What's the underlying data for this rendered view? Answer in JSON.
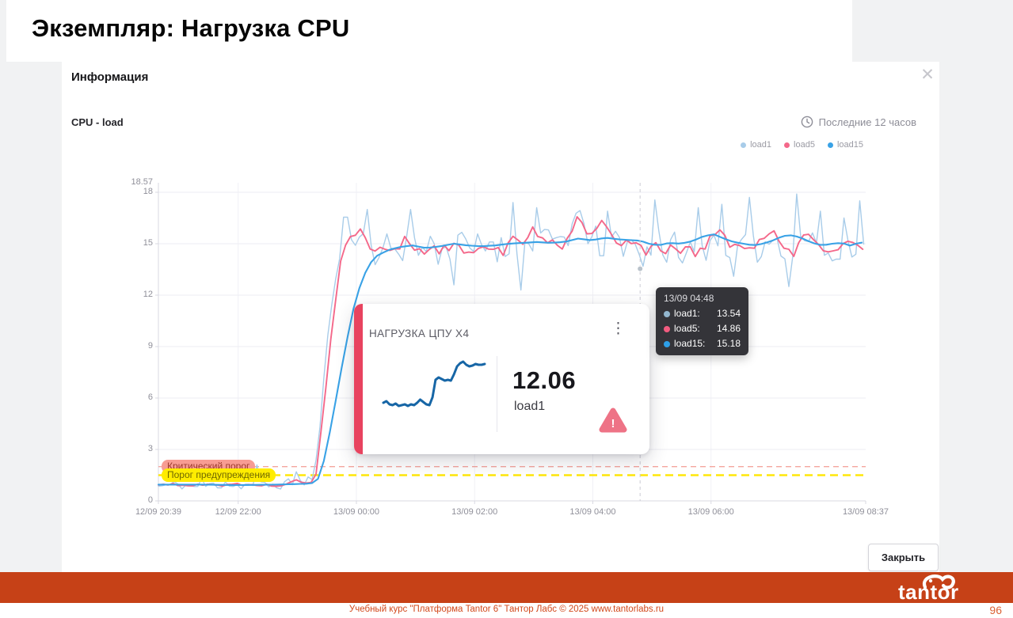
{
  "slide": {
    "title": "Экземпляр: Нагрузка CPU",
    "page_number": "96",
    "footer": "Учебный курс \"Платформа Tantor 6\"  Тантор Лабс © 2025  www.tantorlabs.ru"
  },
  "brand": {
    "logo_text": "tantor",
    "bar_color": "#c64117"
  },
  "modal": {
    "title": "Информация",
    "close_label": "Закрыть"
  },
  "chart": {
    "title": "CPU - load",
    "time_range": "Последние 12 часов"
  },
  "icons": {
    "close": "✕",
    "kebab": "⋮",
    "warning": "!"
  },
  "tooltip": {
    "time": "13/09 04:48",
    "rows": [
      {
        "label": "load1:",
        "value": "13.54",
        "color": "#93b7cf"
      },
      {
        "label": "load5:",
        "value": "14.86",
        "color": "#f25c80"
      },
      {
        "label": "load15:",
        "value": "15.18",
        "color": "#2d9fe8"
      }
    ]
  },
  "card": {
    "title": "НАГРУЗКА ЦПУ Х4",
    "value": "12.06",
    "metric": "load1",
    "accent_color": "#e8435f",
    "warning_color": "#ee7386",
    "spark_color": "#1766a6",
    "spark_values_y": [
      59,
      57,
      61,
      62,
      60,
      63,
      62,
      61,
      63,
      61,
      62,
      59,
      55,
      58,
      61,
      62,
      52,
      30,
      27,
      29,
      31,
      30,
      31,
      23,
      13,
      9,
      7,
      11,
      13,
      12,
      10,
      11,
      11,
      10
    ]
  },
  "chart_data": {
    "type": "line",
    "title": "CPU - load",
    "grid": true,
    "legend_position": "top-right",
    "x_axis": {
      "range_minutes": [
        0,
        718
      ],
      "start": "12/09 20:39",
      "end": "13/09 08:37",
      "ticks": [
        {
          "t": 0,
          "label": "12/09 20:39"
        },
        {
          "t": 81,
          "label": "12/09 22:00"
        },
        {
          "t": 201,
          "label": "13/09 00:00"
        },
        {
          "t": 321,
          "label": "13/09 02:00"
        },
        {
          "t": 441,
          "label": "13/09 04:00"
        },
        {
          "t": 561,
          "label": "13/09 06:00"
        },
        {
          "t": 718,
          "label": "13/09 08:37"
        }
      ]
    },
    "y_axis": {
      "ticks": [
        0,
        3,
        6,
        9,
        12,
        15,
        18
      ],
      "max_label": "18.57",
      "range": [
        0,
        18.57
      ]
    },
    "rise_t": 158,
    "thresholds": [
      {
        "key": "critical",
        "name": "Критический порог",
        "value": 2.0,
        "line_color": "#f5a59e",
        "label_bg": "#f79c93",
        "label_text_color": "#9c392b",
        "dash": "7 5",
        "width": 1.3
      },
      {
        "key": "warning",
        "name": "Порог предупреждения",
        "value": 1.5,
        "line_color": "#ffe70a",
        "label_bg": "#ffec00",
        "label_text_color": "#6f6800",
        "dash": "10 6",
        "width": 2.6
      }
    ],
    "crosshair": {
      "t": 489,
      "time_label": "13/09 04:48"
    },
    "hover_values": {
      "load1": 13.54,
      "load5": 14.86,
      "load15": 15.18
    },
    "series": [
      {
        "name": "load1",
        "color": "#a8cce9",
        "width": 1.4,
        "seed": 11,
        "step": 4,
        "noise_amp_before": 0.28,
        "noise_amp_after": 0.85,
        "keypoints": [
          [
            0,
            0.85
          ],
          [
            20,
            0.95
          ],
          [
            40,
            0.85
          ],
          [
            60,
            0.95
          ],
          [
            80,
            0.9
          ],
          [
            100,
            0.95
          ],
          [
            120,
            0.9
          ],
          [
            140,
            1.1
          ],
          [
            150,
            1.0
          ],
          [
            156,
            1.2
          ],
          [
            160,
            2.2
          ],
          [
            164,
            4.5
          ],
          [
            168,
            7.0
          ],
          [
            172,
            9.5
          ],
          [
            177,
            12.0
          ],
          [
            182,
            14.0
          ],
          [
            188,
            15.0
          ],
          [
            195,
            15.2
          ],
          [
            205,
            15.4
          ],
          [
            215,
            14.7
          ],
          [
            225,
            14.4
          ],
          [
            235,
            14.9
          ],
          [
            245,
            14.6
          ],
          [
            255,
            15.2
          ],
          [
            265,
            14.6
          ],
          [
            275,
            14.9
          ],
          [
            285,
            14.4
          ],
          [
            295,
            14.7
          ],
          [
            305,
            15.1
          ],
          [
            315,
            14.5
          ],
          [
            325,
            14.9
          ],
          [
            335,
            14.6
          ],
          [
            345,
            14.8
          ],
          [
            355,
            14.5
          ],
          [
            365,
            15.2
          ],
          [
            375,
            14.9
          ],
          [
            385,
            15.6
          ],
          [
            395,
            15.0
          ],
          [
            405,
            15.2
          ],
          [
            415,
            15.5
          ],
          [
            425,
            16.3
          ],
          [
            435,
            15.6
          ],
          [
            445,
            15.8
          ],
          [
            455,
            16.0
          ],
          [
            465,
            15.2
          ],
          [
            475,
            14.9
          ],
          [
            485,
            15.0
          ],
          [
            489,
            13.9
          ],
          [
            495,
            14.4
          ],
          [
            505,
            14.9
          ],
          [
            515,
            14.4
          ],
          [
            525,
            15.0
          ],
          [
            535,
            14.6
          ],
          [
            545,
            14.4
          ],
          [
            555,
            14.8
          ],
          [
            565,
            15.6
          ],
          [
            575,
            15.1
          ],
          [
            585,
            14.7
          ],
          [
            595,
            15.0
          ],
          [
            605,
            14.6
          ],
          [
            615,
            14.9
          ],
          [
            625,
            15.4
          ],
          [
            635,
            14.9
          ],
          [
            645,
            14.5
          ],
          [
            655,
            15.3
          ],
          [
            665,
            15.5
          ],
          [
            675,
            14.7
          ],
          [
            685,
            14.4
          ],
          [
            695,
            14.8
          ],
          [
            705,
            15.1
          ],
          [
            712,
            14.9
          ],
          [
            718,
            14.2
          ]
        ],
        "spikes": [
          [
            43,
            2.2
          ],
          [
            67,
            2.0
          ],
          [
            100,
            2.1
          ],
          [
            139,
            2.6
          ],
          [
            153,
            2.3
          ],
          [
            190,
            18.35
          ],
          [
            212,
            17.0
          ],
          [
            257,
            17.9
          ],
          [
            278,
            16.8
          ],
          [
            302,
            17.3
          ],
          [
            338,
            16.9
          ],
          [
            360,
            17.4
          ],
          [
            384,
            17.1
          ],
          [
            398,
            16.9
          ],
          [
            426,
            18.57
          ],
          [
            442,
            17.2
          ],
          [
            457,
            17.8
          ],
          [
            478,
            16.9
          ],
          [
            505,
            18.45
          ],
          [
            522,
            17.0
          ],
          [
            548,
            17.1
          ],
          [
            572,
            17.3
          ],
          [
            600,
            17.7
          ],
          [
            626,
            17.0
          ],
          [
            648,
            17.9
          ],
          [
            672,
            16.9
          ],
          [
            695,
            17.4
          ],
          [
            712,
            17.5
          ]
        ],
        "dips": [
          [
            222,
            12.4
          ],
          [
            300,
            12.6
          ],
          [
            368,
            12.3
          ],
          [
            450,
            12.5
          ],
          [
            530,
            12.4
          ],
          [
            585,
            12.2
          ],
          [
            640,
            12.5
          ],
          [
            690,
            12.3
          ]
        ]
      },
      {
        "name": "load5",
        "color": "#f4688a",
        "width": 1.9,
        "seed": 5,
        "step": 5,
        "noise_amp_before": 0.07,
        "noise_amp_after": 0.26,
        "keypoints": [
          [
            0,
            0.9
          ],
          [
            15,
            1.0
          ],
          [
            30,
            0.85
          ],
          [
            45,
            0.95
          ],
          [
            60,
            0.9
          ],
          [
            75,
            1.0
          ],
          [
            90,
            0.9
          ],
          [
            105,
            0.95
          ],
          [
            120,
            0.88
          ],
          [
            135,
            1.05
          ],
          [
            142,
            1.35
          ],
          [
            148,
            0.95
          ],
          [
            155,
            1.1
          ],
          [
            160,
            1.6
          ],
          [
            164,
            3.2
          ],
          [
            168,
            5.5
          ],
          [
            173,
            8.5
          ],
          [
            179,
            11.5
          ],
          [
            185,
            13.8
          ],
          [
            191,
            15.0
          ],
          [
            198,
            15.4
          ],
          [
            205,
            15.7
          ],
          [
            212,
            15.1
          ],
          [
            220,
            14.5
          ],
          [
            228,
            14.9
          ],
          [
            236,
            14.4
          ],
          [
            244,
            14.9
          ],
          [
            252,
            15.3
          ],
          [
            260,
            14.7
          ],
          [
            268,
            14.4
          ],
          [
            276,
            14.9
          ],
          [
            284,
            14.5
          ],
          [
            292,
            14.7
          ],
          [
            300,
            15.1
          ],
          [
            308,
            14.6
          ],
          [
            316,
            14.4
          ],
          [
            324,
            15.0
          ],
          [
            332,
            14.6
          ],
          [
            340,
            14.8
          ],
          [
            348,
            14.4
          ],
          [
            356,
            15.0
          ],
          [
            364,
            15.4
          ],
          [
            372,
            14.8
          ],
          [
            380,
            15.8
          ],
          [
            386,
            15.3
          ],
          [
            394,
            14.9
          ],
          [
            402,
            15.3
          ],
          [
            410,
            14.8
          ],
          [
            418,
            15.6
          ],
          [
            425,
            16.7
          ],
          [
            430,
            16.1
          ],
          [
            436,
            15.7
          ],
          [
            443,
            15.9
          ],
          [
            450,
            16.2
          ],
          [
            457,
            15.8
          ],
          [
            464,
            15.3
          ],
          [
            472,
            14.9
          ],
          [
            480,
            15.1
          ],
          [
            488,
            14.86
          ],
          [
            496,
            14.5
          ],
          [
            504,
            14.9
          ],
          [
            512,
            14.4
          ],
          [
            520,
            15.0
          ],
          [
            528,
            14.6
          ],
          [
            536,
            14.9
          ],
          [
            544,
            14.3
          ],
          [
            552,
            14.7
          ],
          [
            560,
            15.3
          ],
          [
            568,
            16.0
          ],
          [
            574,
            15.4
          ],
          [
            582,
            14.8
          ],
          [
            590,
            15.1
          ],
          [
            598,
            14.6
          ],
          [
            606,
            14.9
          ],
          [
            614,
            15.4
          ],
          [
            622,
            15.8
          ],
          [
            628,
            15.2
          ],
          [
            636,
            14.7
          ],
          [
            644,
            14.4
          ],
          [
            652,
            15.2
          ],
          [
            660,
            15.8
          ],
          [
            668,
            15.2
          ],
          [
            676,
            14.6
          ],
          [
            684,
            14.3
          ],
          [
            692,
            14.7
          ],
          [
            700,
            15.0
          ],
          [
            708,
            15.3
          ],
          [
            714,
            14.8
          ],
          [
            718,
            15.0
          ]
        ],
        "spikes": [],
        "dips": []
      },
      {
        "name": "load15",
        "color": "#39a2e6",
        "width": 2.1,
        "seed": 1,
        "step": 6,
        "noise_amp_before": 0,
        "noise_amp_after": 0,
        "keypoints": [
          [
            0,
            0.95
          ],
          [
            40,
            0.95
          ],
          [
            80,
            0.92
          ],
          [
            120,
            0.95
          ],
          [
            150,
            1.0
          ],
          [
            158,
            1.05
          ],
          [
            164,
            1.4
          ],
          [
            170,
            2.8
          ],
          [
            176,
            4.6
          ],
          [
            183,
            6.8
          ],
          [
            190,
            9.0
          ],
          [
            198,
            11.2
          ],
          [
            206,
            12.8
          ],
          [
            214,
            13.8
          ],
          [
            222,
            14.3
          ],
          [
            232,
            14.6
          ],
          [
            244,
            14.8
          ],
          [
            258,
            14.9
          ],
          [
            272,
            14.75
          ],
          [
            286,
            14.85
          ],
          [
            300,
            15.0
          ],
          [
            314,
            14.9
          ],
          [
            328,
            14.85
          ],
          [
            342,
            14.9
          ],
          [
            356,
            15.0
          ],
          [
            370,
            15.05
          ],
          [
            384,
            15.1
          ],
          [
            398,
            15.05
          ],
          [
            412,
            15.1
          ],
          [
            426,
            15.3
          ],
          [
            440,
            15.2
          ],
          [
            454,
            15.35
          ],
          [
            468,
            15.25
          ],
          [
            482,
            15.2
          ],
          [
            489,
            15.18
          ],
          [
            498,
            15.0
          ],
          [
            508,
            14.9
          ],
          [
            518,
            15.05
          ],
          [
            530,
            15.0
          ],
          [
            542,
            15.15
          ],
          [
            554,
            15.45
          ],
          [
            564,
            15.55
          ],
          [
            574,
            15.3
          ],
          [
            584,
            15.1
          ],
          [
            594,
            15.0
          ],
          [
            604,
            14.9
          ],
          [
            614,
            15.0
          ],
          [
            624,
            15.2
          ],
          [
            634,
            15.45
          ],
          [
            644,
            15.5
          ],
          [
            654,
            15.3
          ],
          [
            664,
            15.05
          ],
          [
            674,
            14.9
          ],
          [
            684,
            15.0
          ],
          [
            694,
            15.05
          ],
          [
            704,
            14.85
          ],
          [
            712,
            15.15
          ],
          [
            718,
            14.9
          ]
        ],
        "spikes": [],
        "dips": []
      }
    ]
  }
}
